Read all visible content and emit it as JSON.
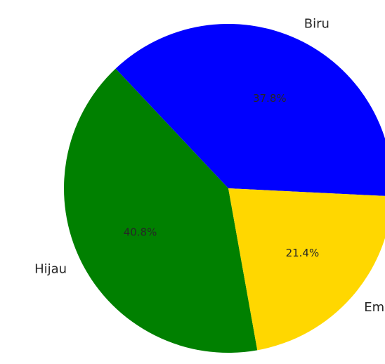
{
  "chart_data": {
    "type": "pie",
    "categories": [
      "Biru",
      "Hijau",
      "Emas"
    ],
    "values": [
      37.8,
      40.8,
      21.4
    ],
    "percent_labels": [
      "37.8%",
      "40.8%",
      "21.4%"
    ],
    "colors": [
      "#0000ff",
      "#008000",
      "#ffd700"
    ],
    "title": "",
    "legend": "none"
  }
}
